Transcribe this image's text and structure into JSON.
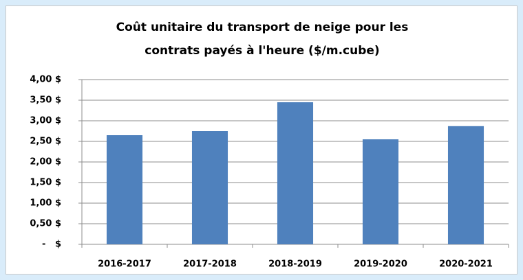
{
  "chart_data": {
    "type": "bar",
    "title": "Coût unitaire du transport de neige pour les contrats payés à l'heure ($/m.cube)",
    "categories": [
      "2016-2017",
      "2017-2018",
      "2018-2019",
      "2019-2020",
      "2020-2021"
    ],
    "values": [
      2.65,
      2.75,
      3.45,
      2.55,
      2.87
    ],
    "color": "#4f81bd",
    "ylim": [
      0,
      4
    ],
    "yticks": [
      {
        "value": 0,
        "label": "-   $"
      },
      {
        "value": 0.5,
        "label": "0,50 $"
      },
      {
        "value": 1,
        "label": "1,00 $"
      },
      {
        "value": 1.5,
        "label": "1,50 $"
      },
      {
        "value": 2,
        "label": "2,00 $"
      },
      {
        "value": 2.5,
        "label": "2,50 $"
      },
      {
        "value": 3,
        "label": "3,00 $"
      },
      {
        "value": 3.5,
        "label": "3,50 $"
      },
      {
        "value": 4,
        "label": "4,00 $"
      }
    ],
    "grid": true
  }
}
